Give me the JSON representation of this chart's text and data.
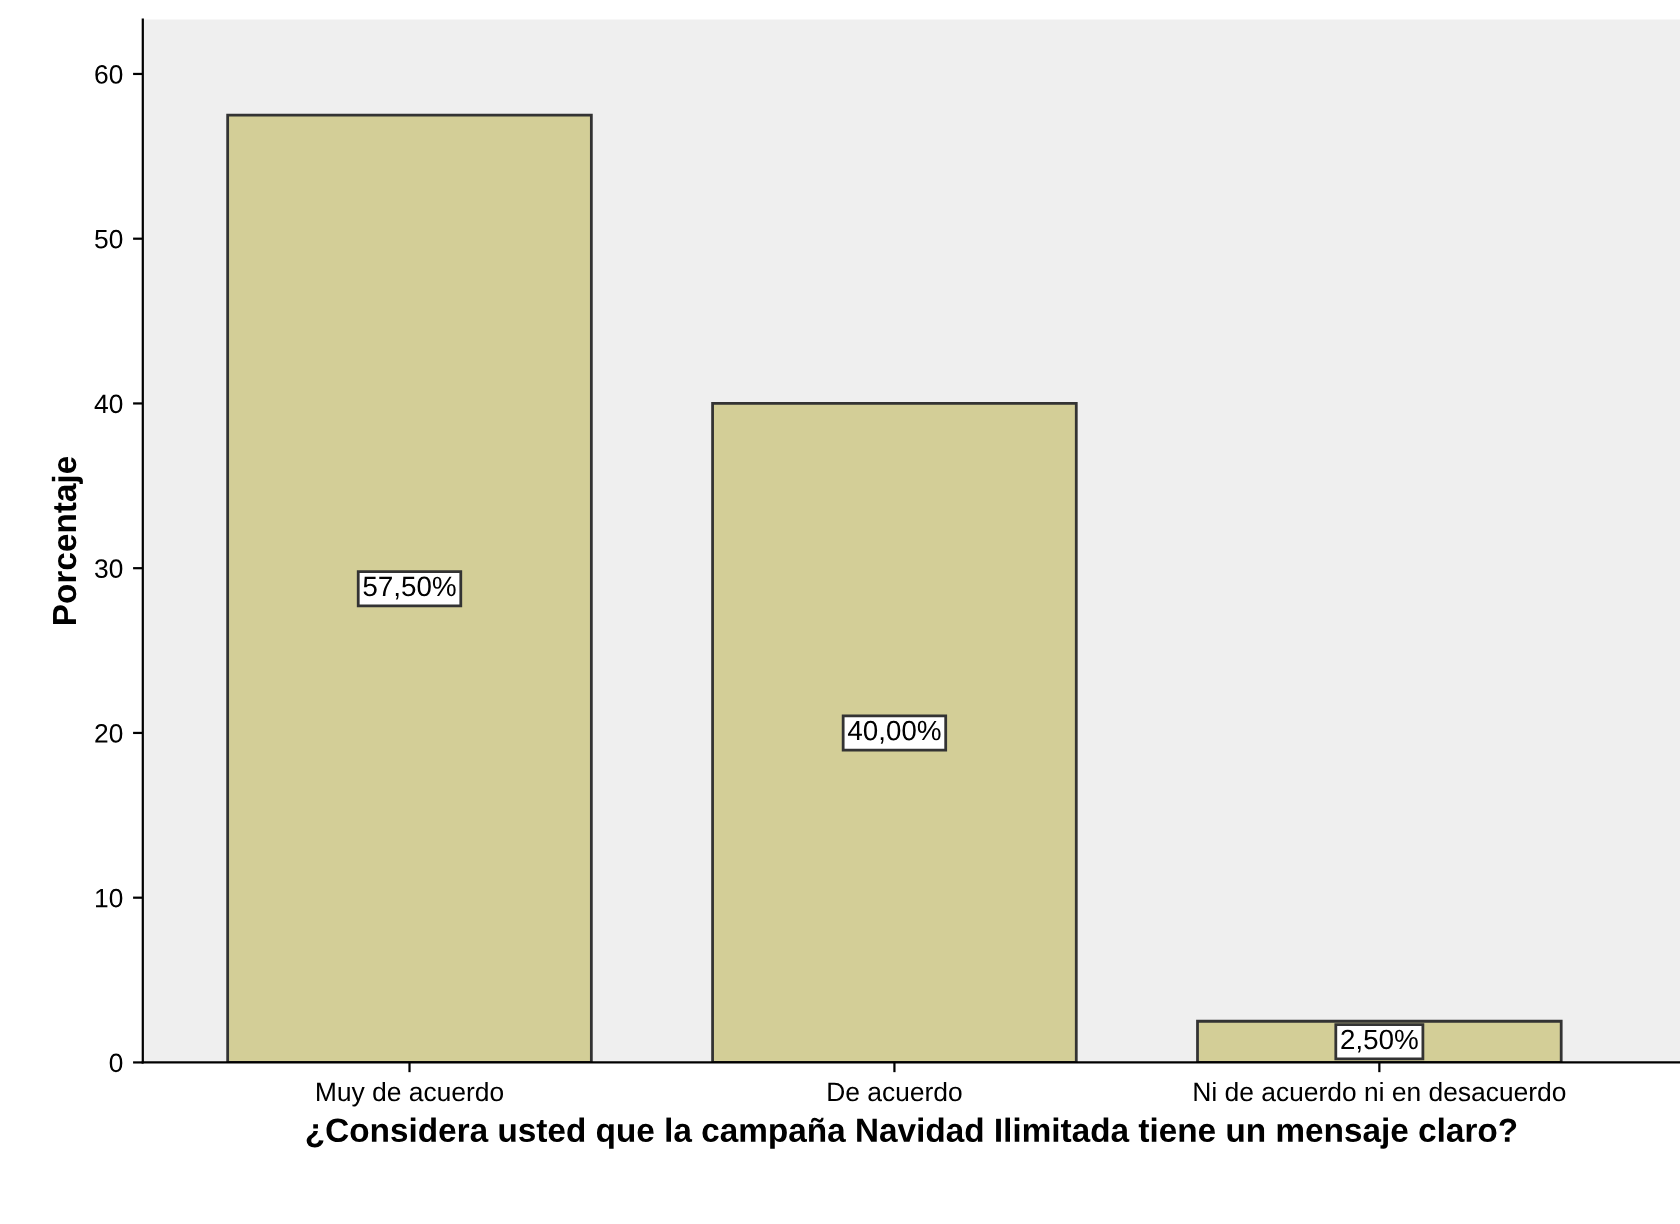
{
  "chart_data": {
    "type": "bar",
    "xlabel": "¿Considera usted que la campaña Navidad Ilimitada tiene un mensaje claro?",
    "ylabel": "Porcentaje",
    "categories": [
      "Muy de acuerdo",
      "De acuerdo",
      "Ni de acuerdo ni en desacuerdo"
    ],
    "values": [
      57.5,
      40.0,
      2.5
    ],
    "value_labels": [
      "57,50%",
      "40,00%",
      "2,50%"
    ],
    "color": "#d3ce97",
    "ylim": [
      0,
      63.3
    ],
    "yticks": [
      0,
      10,
      20,
      30,
      40,
      50,
      60
    ],
    "grid": false,
    "legend": false
  }
}
